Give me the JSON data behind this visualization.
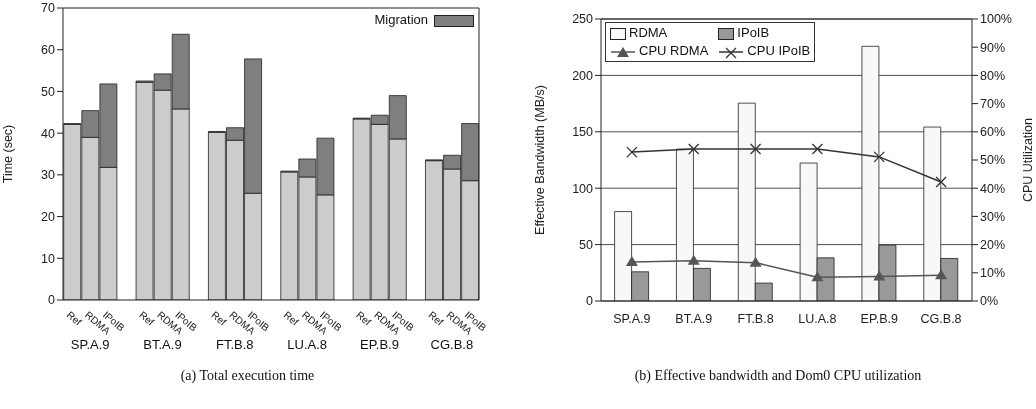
{
  "chart_data": [
    {
      "type": "bar",
      "title": "(a) Total execution time",
      "ylabel": "Time (sec)",
      "stacked": true,
      "legend": "top right",
      "grid": false,
      "categories": [
        "Ref",
        "RDMA",
        "IPoIB",
        null,
        "Ref",
        "RDMA",
        "IPoIB",
        null,
        "Ref",
        "RDMA",
        "IPoIB",
        null,
        "Ref",
        "RDMA",
        "IPoIB",
        null,
        "Ref",
        "RDMA",
        "IPoIB",
        null,
        "Ref",
        "RDMA",
        "IPoIB"
      ],
      "annotations": [
        "SP.A.9",
        "BT.A.9",
        "FT.B.8",
        "LU.A.8",
        "EP.B.9",
        "CG.B.8"
      ],
      "series": [
        {
          "color": "#cccccc",
          "values": [
            42.1,
            39.0,
            31.8,
            null,
            52.2,
            50.3,
            45.8,
            null,
            40.2,
            38.3,
            25.6,
            null,
            30.7,
            29.5,
            25.2,
            null,
            43.4,
            42.1,
            38.6,
            null,
            33.4,
            31.4,
            28.6
          ]
        },
        {
          "name": "Migration",
          "color": "#7f7f7f",
          "values": [
            0.2,
            6.4,
            20.0,
            null,
            0.3,
            3.9,
            17.9,
            null,
            0.2,
            3.0,
            32.2,
            null,
            0.2,
            4.3,
            13.6,
            null,
            0.2,
            2.2,
            10.4,
            null,
            0.2,
            3.3,
            13.7
          ]
        }
      ],
      "ylim": [
        0,
        70
      ],
      "yticks": [
        0,
        10,
        20,
        30,
        40,
        50,
        60,
        70
      ]
    },
    {
      "type": "bar",
      "title": "(b) Effective bandwidth and Dom0 CPU utilization",
      "ylabel": "Effective Bandwidth (MB/s)",
      "y2label": "CPU Utilization",
      "legend": "top left",
      "grid": "y",
      "categories": [
        "SP.A.9",
        "BT.A.9",
        "FT.B.8",
        "LU.A.8",
        "EP.B.9",
        "CG.B.8"
      ],
      "series": [
        {
          "name": "RDMA",
          "color": "#f8f8f8",
          "values": [
            79.3,
            134.7,
            175.4,
            122.3,
            225.8,
            154.2
          ]
        },
        {
          "name": "IPoIB",
          "color": "#999999",
          "values": [
            25.9,
            28.9,
            15.9,
            38.3,
            49.5,
            37.7
          ]
        },
        {
          "name": "CPU RDMA",
          "type": "line",
          "axis": "y2",
          "marker": "triangle",
          "color": "#555555",
          "values": [
            13.8,
            14.3,
            13.6,
            8.4,
            8.7,
            9.1
          ]
        },
        {
          "name": "CPU IPoIB",
          "type": "line",
          "axis": "y2",
          "marker": "cross",
          "color": "#333333",
          "values": [
            52.8,
            53.9,
            53.9,
            53.9,
            51.1,
            42.2
          ]
        }
      ],
      "ylim": [
        0,
        250
      ],
      "yticks": [
        0,
        50,
        100,
        150,
        200,
        250
      ],
      "y2lim": [
        0,
        100
      ],
      "y2ticks": [
        {
          "value": 0,
          "label": "0%"
        },
        {
          "value": 10,
          "label": "10%"
        },
        {
          "value": 20,
          "label": "20%"
        },
        {
          "value": 30,
          "label": "30%"
        },
        {
          "value": 40,
          "label": "40%"
        },
        {
          "value": 50,
          "label": "50%"
        },
        {
          "value": 60,
          "label": "60%"
        },
        {
          "value": 70,
          "label": "70%"
        },
        {
          "value": 80,
          "label": "80%"
        },
        {
          "value": 90,
          "label": "90%"
        },
        {
          "value": 100,
          "label": "100%"
        }
      ]
    }
  ]
}
